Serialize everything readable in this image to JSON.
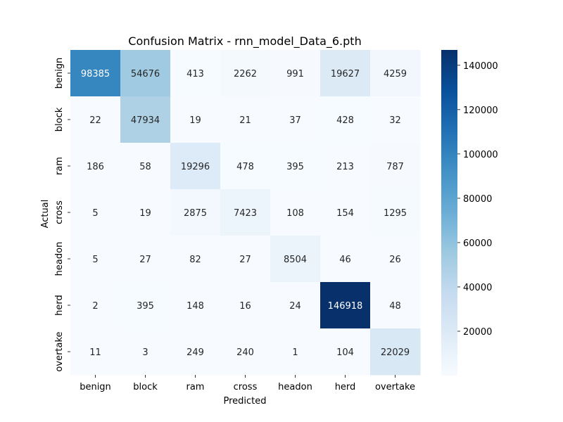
{
  "chart_data": {
    "type": "heatmap",
    "title": "Confusion Matrix - rnn_model_Data_6.pth",
    "xlabel": "Predicted",
    "ylabel": "Actual",
    "x_categories": [
      "benign",
      "block",
      "ram",
      "cross",
      "headon",
      "herd",
      "overtake"
    ],
    "y_categories": [
      "benign",
      "block",
      "ram",
      "cross",
      "headon",
      "herd",
      "overtake"
    ],
    "values": [
      [
        98385,
        54676,
        413,
        2262,
        991,
        19627,
        4259
      ],
      [
        22,
        47934,
        19,
        21,
        37,
        428,
        32
      ],
      [
        186,
        58,
        19296,
        478,
        395,
        213,
        787
      ],
      [
        5,
        19,
        2875,
        7423,
        108,
        154,
        1295
      ],
      [
        5,
        27,
        82,
        27,
        8504,
        46,
        26
      ],
      [
        2,
        395,
        148,
        16,
        24,
        146918,
        48
      ],
      [
        11,
        3,
        249,
        240,
        1,
        104,
        22029
      ]
    ],
    "colormap": "Blues",
    "colorbar": {
      "min": 1,
      "max": 146918,
      "ticks": [
        20000,
        40000,
        60000,
        80000,
        100000,
        120000,
        140000
      ],
      "tick_labels": [
        "20000",
        "40000",
        "60000",
        "80000",
        "100000",
        "120000",
        "140000"
      ]
    }
  }
}
